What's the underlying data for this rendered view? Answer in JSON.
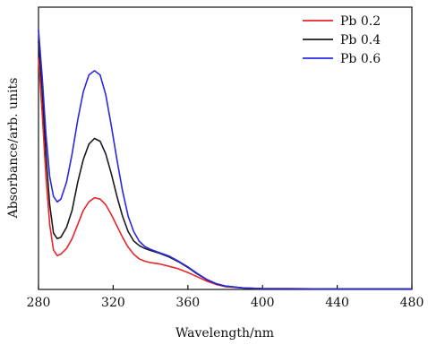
{
  "chart_data": {
    "type": "line",
    "title": "",
    "xlabel": "Wavelength/nm",
    "ylabel": "Absorbance/arb. units",
    "xlim": [
      280,
      480
    ],
    "ylim": [
      0,
      1.0
    ],
    "x_ticks": [
      280,
      320,
      360,
      400,
      440,
      480
    ],
    "x_tick_labels": [
      "280",
      "320",
      "360",
      "400",
      "440",
      "480"
    ],
    "y_ticks_labeled": false,
    "grid": false,
    "legend_position": "top-right",
    "series": [
      {
        "name": "Pb 0.2",
        "color": "#e8262a",
        "points": [
          [
            280,
            0.82
          ],
          [
            282,
            0.62
          ],
          [
            284,
            0.4
          ],
          [
            286,
            0.23
          ],
          [
            288,
            0.14
          ],
          [
            290,
            0.12
          ],
          [
            292,
            0.125
          ],
          [
            295,
            0.145
          ],
          [
            298,
            0.18
          ],
          [
            301,
            0.23
          ],
          [
            304,
            0.28
          ],
          [
            307,
            0.31
          ],
          [
            310,
            0.325
          ],
          [
            313,
            0.32
          ],
          [
            316,
            0.3
          ],
          [
            319,
            0.265
          ],
          [
            322,
            0.225
          ],
          [
            325,
            0.185
          ],
          [
            328,
            0.15
          ],
          [
            331,
            0.125
          ],
          [
            334,
            0.108
          ],
          [
            337,
            0.1
          ],
          [
            340,
            0.095
          ],
          [
            345,
            0.09
          ],
          [
            350,
            0.082
          ],
          [
            355,
            0.073
          ],
          [
            360,
            0.06
          ],
          [
            365,
            0.045
          ],
          [
            370,
            0.03
          ],
          [
            375,
            0.018
          ],
          [
            380,
            0.01
          ],
          [
            390,
            0.005
          ],
          [
            400,
            0.003
          ],
          [
            440,
            0.002
          ],
          [
            480,
            0.002
          ]
        ]
      },
      {
        "name": "Pb 0.4",
        "color": "#1a1a1a",
        "points": [
          [
            280,
            0.88
          ],
          [
            282,
            0.7
          ],
          [
            284,
            0.48
          ],
          [
            286,
            0.3
          ],
          [
            288,
            0.2
          ],
          [
            290,
            0.18
          ],
          [
            292,
            0.185
          ],
          [
            295,
            0.22
          ],
          [
            298,
            0.28
          ],
          [
            301,
            0.38
          ],
          [
            304,
            0.46
          ],
          [
            307,
            0.515
          ],
          [
            310,
            0.535
          ],
          [
            313,
            0.525
          ],
          [
            316,
            0.48
          ],
          [
            319,
            0.41
          ],
          [
            322,
            0.33
          ],
          [
            325,
            0.26
          ],
          [
            328,
            0.205
          ],
          [
            331,
            0.172
          ],
          [
            334,
            0.155
          ],
          [
            337,
            0.145
          ],
          [
            340,
            0.138
          ],
          [
            345,
            0.128
          ],
          [
            350,
            0.115
          ],
          [
            355,
            0.098
          ],
          [
            360,
            0.078
          ],
          [
            365,
            0.055
          ],
          [
            370,
            0.035
          ],
          [
            375,
            0.02
          ],
          [
            380,
            0.012
          ],
          [
            390,
            0.005
          ],
          [
            400,
            0.003
          ],
          [
            440,
            0.002
          ],
          [
            480,
            0.002
          ]
        ]
      },
      {
        "name": "Pb 0.6",
        "color": "#2929e0",
        "points": [
          [
            280,
            0.92
          ],
          [
            282,
            0.75
          ],
          [
            284,
            0.55
          ],
          [
            286,
            0.4
          ],
          [
            288,
            0.33
          ],
          [
            290,
            0.31
          ],
          [
            292,
            0.32
          ],
          [
            295,
            0.38
          ],
          [
            298,
            0.48
          ],
          [
            301,
            0.6
          ],
          [
            304,
            0.7
          ],
          [
            307,
            0.76
          ],
          [
            310,
            0.775
          ],
          [
            313,
            0.76
          ],
          [
            316,
            0.69
          ],
          [
            319,
            0.58
          ],
          [
            322,
            0.46
          ],
          [
            325,
            0.35
          ],
          [
            328,
            0.26
          ],
          [
            331,
            0.205
          ],
          [
            334,
            0.17
          ],
          [
            337,
            0.152
          ],
          [
            340,
            0.142
          ],
          [
            345,
            0.13
          ],
          [
            350,
            0.118
          ],
          [
            355,
            0.1
          ],
          [
            360,
            0.08
          ],
          [
            365,
            0.057
          ],
          [
            370,
            0.036
          ],
          [
            375,
            0.021
          ],
          [
            380,
            0.012
          ],
          [
            390,
            0.005
          ],
          [
            400,
            0.003
          ],
          [
            440,
            0.002
          ],
          [
            480,
            0.002
          ]
        ]
      }
    ]
  }
}
